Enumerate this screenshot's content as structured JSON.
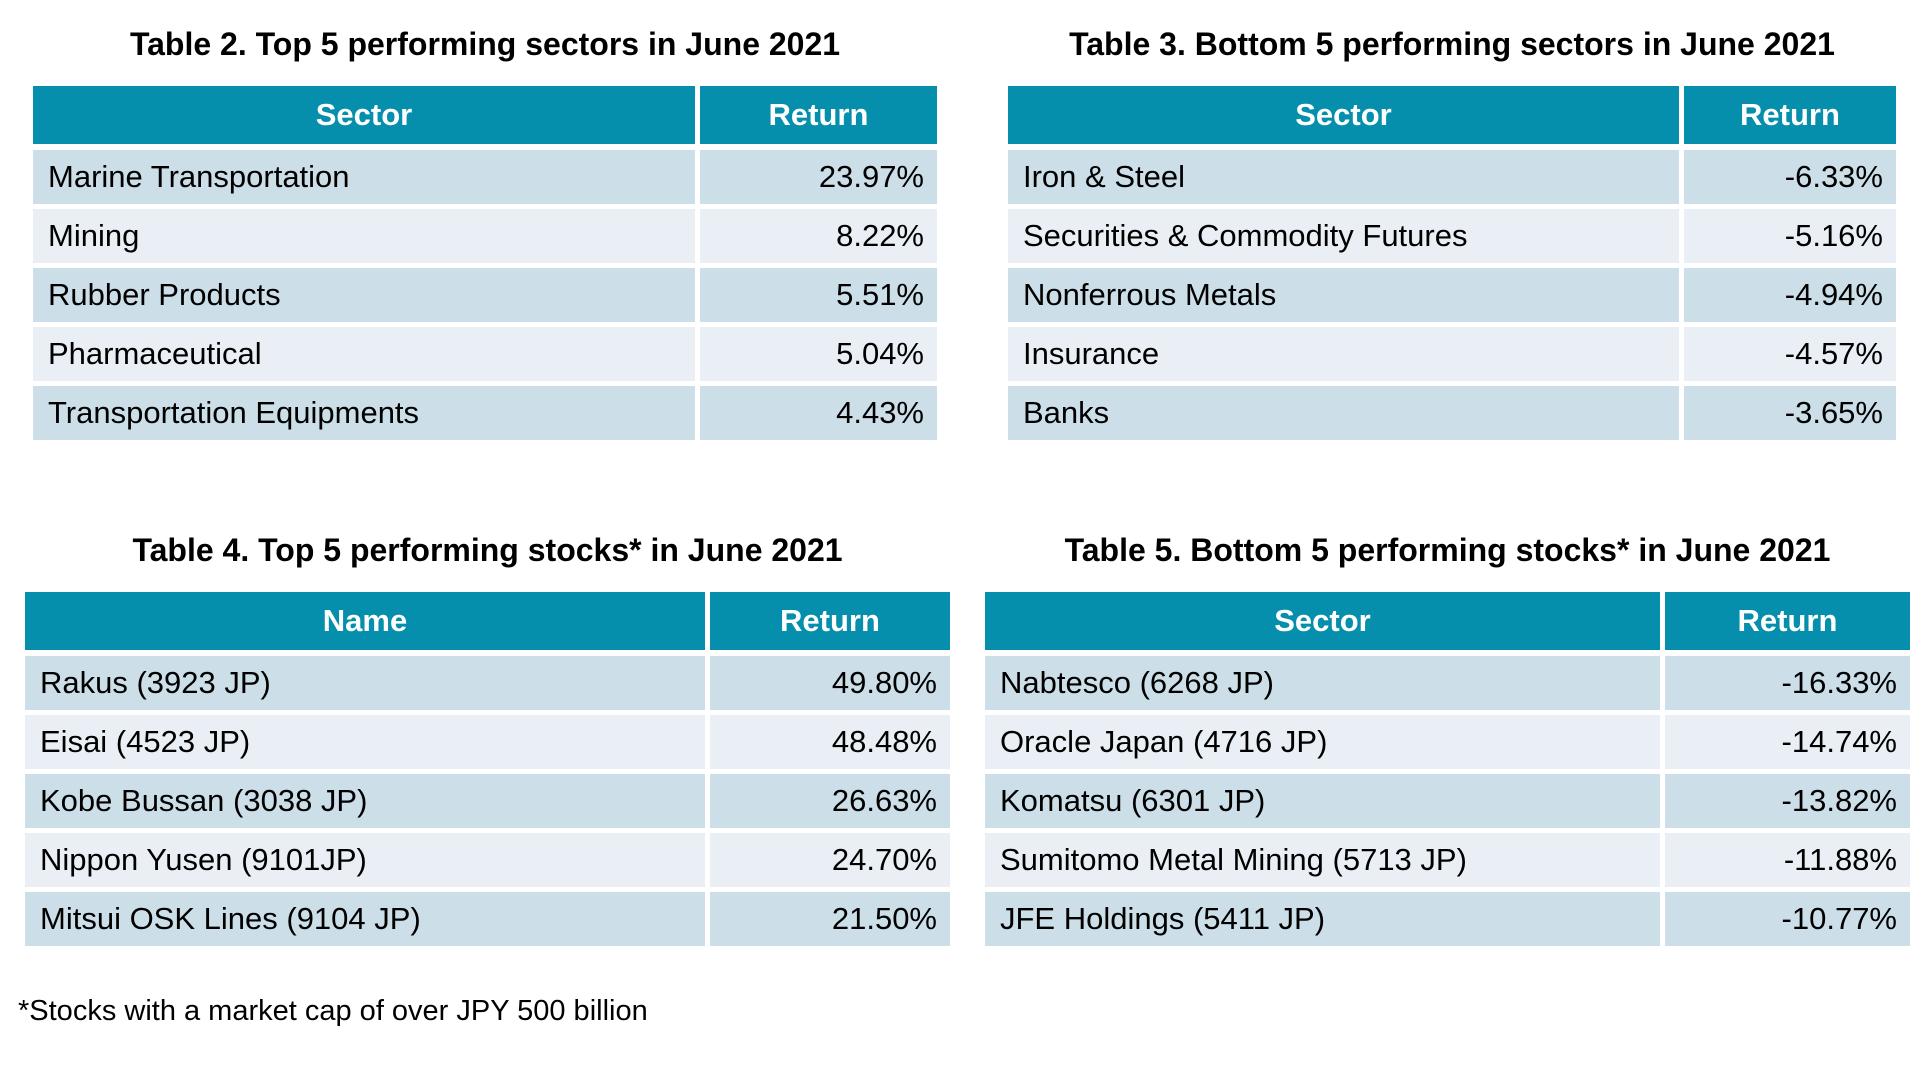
{
  "colors": {
    "header_bg": "#068fac",
    "header_text": "#ffffff",
    "row_dark": "#ccdee7",
    "row_light": "#e9eff4",
    "body_text": "#000000",
    "background": "#ffffff"
  },
  "footnote": "*Stocks with a market cap of over JPY 500 billion",
  "tables": [
    {
      "title": "Table 2. Top 5 performing sectors in June 2021",
      "columns": [
        "Sector",
        "Return"
      ],
      "rows": [
        [
          "Marine Transportation",
          "23.97%"
        ],
        [
          "Mining",
          "8.22%"
        ],
        [
          "Rubber Products",
          "5.51%"
        ],
        [
          "Pharmaceutical",
          "5.04%"
        ],
        [
          "Transportation Equipments",
          "4.43%"
        ]
      ]
    },
    {
      "title": "Table 3. Bottom 5 performing sectors in June 2021",
      "columns": [
        "Sector",
        "Return"
      ],
      "rows": [
        [
          "Iron & Steel",
          "-6.33%"
        ],
        [
          "Securities & Commodity Futures",
          "-5.16%"
        ],
        [
          "Nonferrous Metals",
          "-4.94%"
        ],
        [
          "Insurance",
          "-4.57%"
        ],
        [
          "Banks",
          "-3.65%"
        ]
      ]
    },
    {
      "title": "Table 4. Top 5 performing stocks* in June 2021",
      "columns": [
        "Name",
        "Return"
      ],
      "rows": [
        [
          "Rakus (3923 JP)",
          "49.80%"
        ],
        [
          "Eisai (4523 JP)",
          "48.48%"
        ],
        [
          "Kobe Bussan (3038 JP)",
          "26.63%"
        ],
        [
          "Nippon Yusen (9101JP)",
          "24.70%"
        ],
        [
          "Mitsui OSK Lines (9104 JP)",
          "21.50%"
        ]
      ]
    },
    {
      "title": "Table 5. Bottom 5 performing stocks* in June 2021",
      "columns": [
        "Sector",
        "Return"
      ],
      "rows": [
        [
          "Nabtesco (6268 JP)",
          "-16.33%"
        ],
        [
          "Oracle Japan (4716 JP)",
          "-14.74%"
        ],
        [
          "Komatsu (6301 JP)",
          "-13.82%"
        ],
        [
          "Sumitomo Metal Mining (5713 JP)",
          "-11.88%"
        ],
        [
          "JFE Holdings (5411 JP)",
          "-10.77%"
        ]
      ]
    }
  ]
}
